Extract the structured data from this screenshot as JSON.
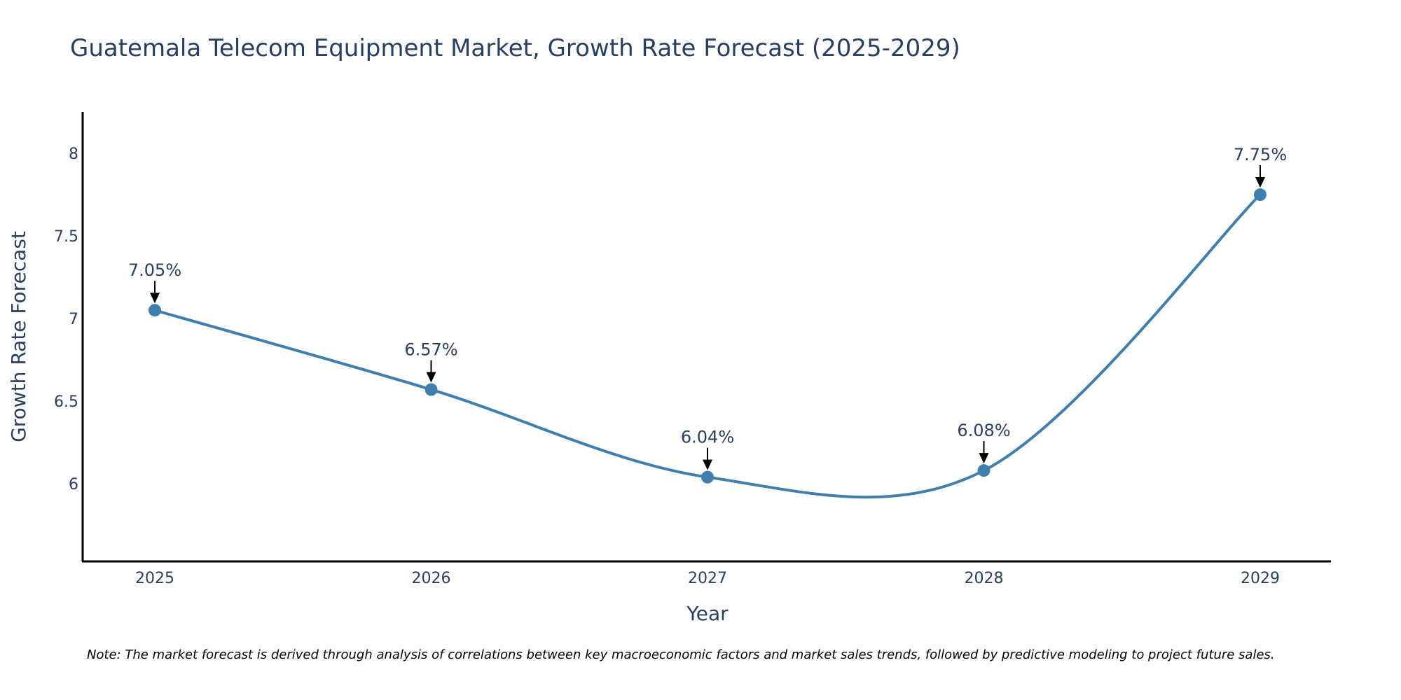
{
  "chart_data": {
    "type": "line",
    "title": "Guatemala Telecom Equipment Market, Growth Rate Forecast (2025-2029)",
    "xlabel": "Year",
    "ylabel": "Growth Rate Forecast",
    "categories": [
      "2025",
      "2026",
      "2027",
      "2028",
      "2029"
    ],
    "series": [
      {
        "name": "Growth Rate Forecast",
        "values": [
          7.05,
          6.57,
          6.04,
          6.08,
          7.75
        ],
        "labels": [
          "7.05%",
          "6.57%",
          "6.04%",
          "6.08%",
          "7.75%"
        ]
      }
    ],
    "yticks": [
      6,
      6.5,
      7,
      7.5,
      8
    ],
    "ytick_labels": [
      "6",
      "6.5",
      "7",
      "7.5",
      "8"
    ],
    "ylim": [
      5.53,
      8.25
    ],
    "grid": false,
    "line_shape": "spline",
    "note": "Note: The market forecast is derived through analysis of correlations between key macroeconomic factors and market sales trends, followed by predictive modeling to project future sales."
  },
  "colors": {
    "line": "#3f7fad",
    "marker": "#3f7fad",
    "text": "#2a3f5f",
    "axis": "#000000",
    "arrow": "#000000"
  }
}
